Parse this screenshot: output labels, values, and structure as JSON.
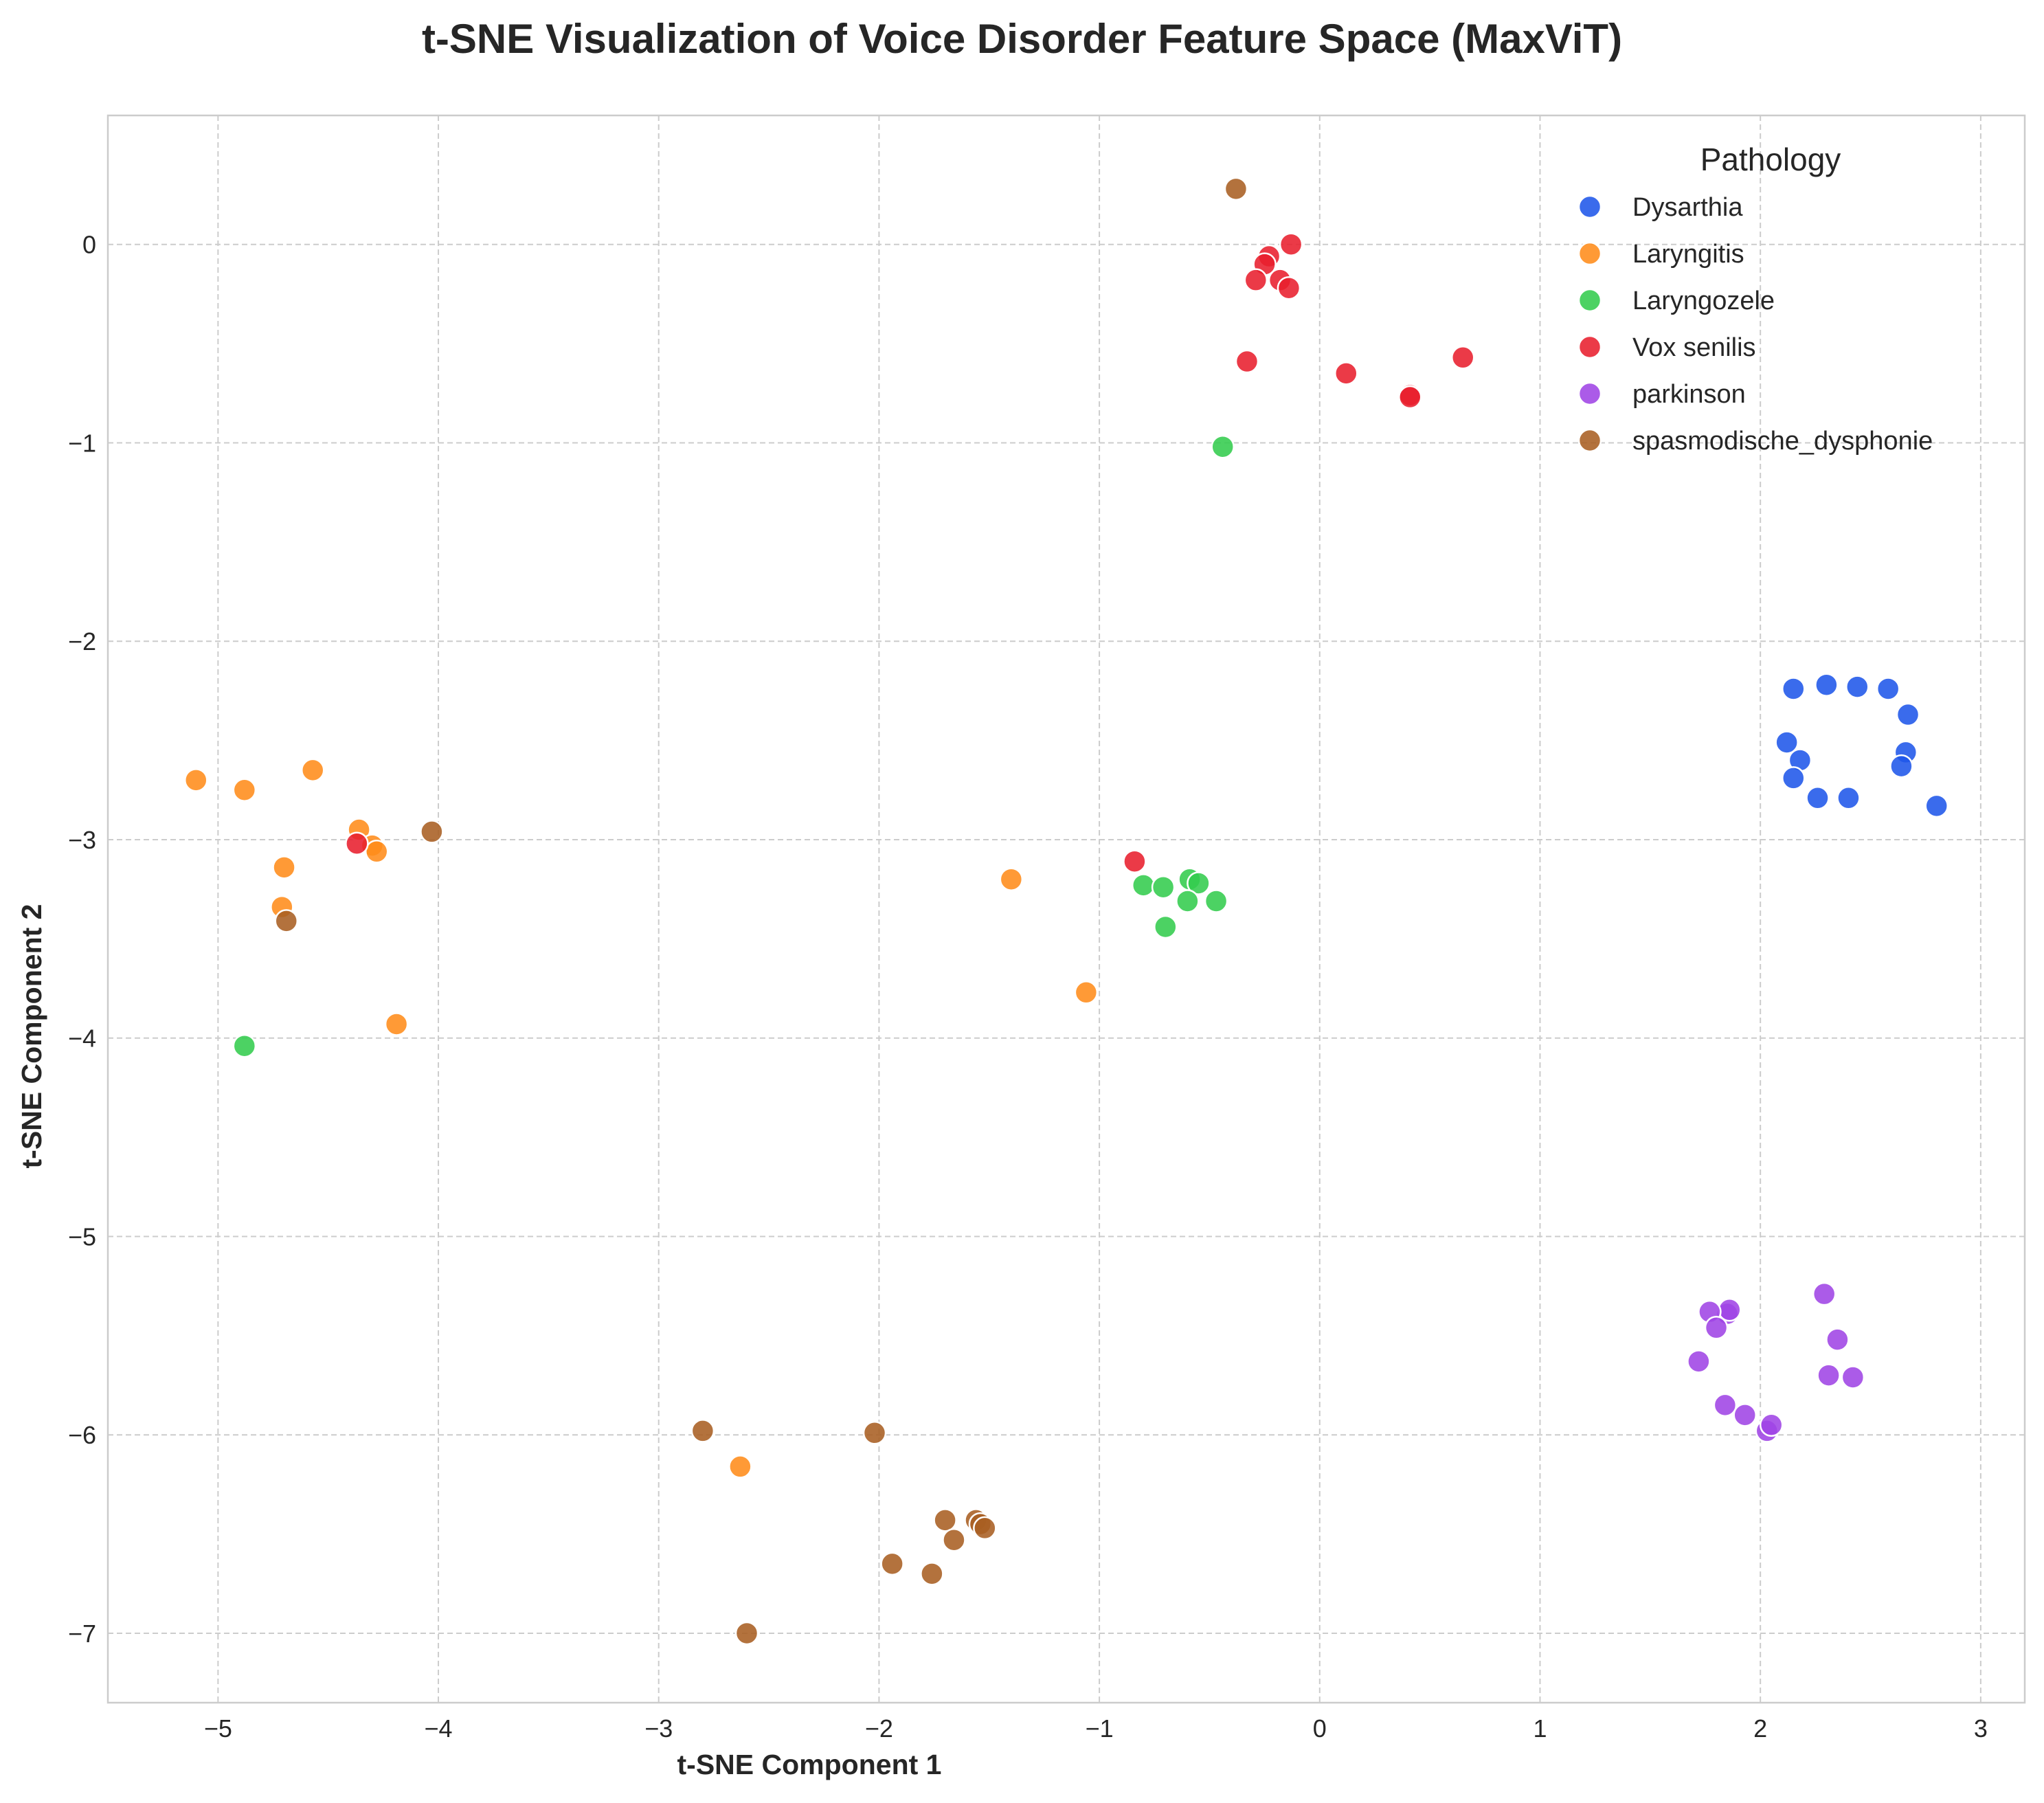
{
  "chart_data": {
    "type": "scatter",
    "title": "t-SNE Visualization of Voice Disorder Feature Space (MaxViT)",
    "xlabel": "t-SNE Component 1",
    "ylabel": "t-SNE Component 2",
    "xlim": [
      -5.5,
      3.2
    ],
    "ylim": [
      -7.35,
      0.65
    ],
    "xticks": [
      -5,
      -4,
      -3,
      -2,
      -1,
      0,
      1,
      2,
      3
    ],
    "yticks": [
      0,
      -1,
      -2,
      -3,
      -4,
      -5,
      -6,
      -7
    ],
    "grid": true,
    "legend": {
      "title": "Pathology",
      "position": "top-right"
    },
    "series": [
      {
        "name": "Dysarthia",
        "color": "#1f57e9",
        "points": [
          [
            2.15,
            -2.24
          ],
          [
            2.3,
            -2.22
          ],
          [
            2.44,
            -2.23
          ],
          [
            2.58,
            -2.24
          ],
          [
            2.67,
            -2.37
          ],
          [
            2.12,
            -2.51
          ],
          [
            2.18,
            -2.6
          ],
          [
            2.66,
            -2.56
          ],
          [
            2.15,
            -2.69
          ],
          [
            2.26,
            -2.79
          ],
          [
            2.4,
            -2.79
          ],
          [
            2.64,
            -2.63
          ],
          [
            2.8,
            -2.83
          ]
        ]
      },
      {
        "name": "Laryngitis",
        "color": "#ff8c1a",
        "points": [
          [
            -5.1,
            -2.7
          ],
          [
            -4.88,
            -2.75
          ],
          [
            -4.57,
            -2.65
          ],
          [
            -4.7,
            -3.14
          ],
          [
            -4.36,
            -2.95
          ],
          [
            -4.3,
            -3.03
          ],
          [
            -4.28,
            -3.06
          ],
          [
            -4.71,
            -3.34
          ],
          [
            -4.19,
            -3.93
          ],
          [
            -1.4,
            -3.2
          ],
          [
            -1.06,
            -3.77
          ],
          [
            -2.63,
            -6.16
          ]
        ]
      },
      {
        "name": "Laryngozele",
        "color": "#33cc4d",
        "points": [
          [
            -0.44,
            -1.02
          ],
          [
            -0.8,
            -3.23
          ],
          [
            -0.71,
            -3.24
          ],
          [
            -0.59,
            -3.2
          ],
          [
            -0.55,
            -3.22
          ],
          [
            -0.6,
            -3.31
          ],
          [
            -0.47,
            -3.31
          ],
          [
            -0.7,
            -3.44
          ],
          [
            -4.88,
            -4.04
          ]
        ]
      },
      {
        "name": "Vox senilis",
        "color": "#e81f2e",
        "points": [
          [
            -0.13,
            0.0
          ],
          [
            -0.23,
            -0.06
          ],
          [
            -0.25,
            -0.1
          ],
          [
            -0.29,
            -0.18
          ],
          [
            -0.18,
            -0.18
          ],
          [
            -0.14,
            -0.22
          ],
          [
            -0.33,
            -0.59
          ],
          [
            0.12,
            -0.65
          ],
          [
            0.41,
            -0.76
          ],
          [
            0.41,
            -0.77
          ],
          [
            0.65,
            -0.57
          ],
          [
            -0.84,
            -3.11
          ],
          [
            -4.37,
            -3.02
          ]
        ]
      },
      {
        "name": "parkinson",
        "color": "#9f44e5",
        "points": [
          [
            2.29,
            -5.29
          ],
          [
            1.85,
            -5.39
          ],
          [
            1.86,
            -5.37
          ],
          [
            1.77,
            -5.38
          ],
          [
            1.8,
            -5.46
          ],
          [
            2.35,
            -5.52
          ],
          [
            1.72,
            -5.63
          ],
          [
            2.31,
            -5.7
          ],
          [
            2.42,
            -5.71
          ],
          [
            1.84,
            -5.85
          ],
          [
            1.93,
            -5.9
          ],
          [
            2.03,
            -5.98
          ],
          [
            2.05,
            -5.95
          ]
        ]
      },
      {
        "name": "spasmodische_dysphonie",
        "color": "#a85e22",
        "points": [
          [
            -0.38,
            0.28
          ],
          [
            -4.03,
            -2.96
          ],
          [
            -4.69,
            -3.41
          ],
          [
            -2.8,
            -5.98
          ],
          [
            -2.02,
            -5.99
          ],
          [
            -1.7,
            -6.43
          ],
          [
            -1.56,
            -6.43
          ],
          [
            -1.54,
            -6.45
          ],
          [
            -1.52,
            -6.47
          ],
          [
            -1.66,
            -6.53
          ],
          [
            -1.94,
            -6.65
          ],
          [
            -1.76,
            -6.7
          ],
          [
            -2.6,
            -7.0
          ]
        ]
      }
    ]
  }
}
